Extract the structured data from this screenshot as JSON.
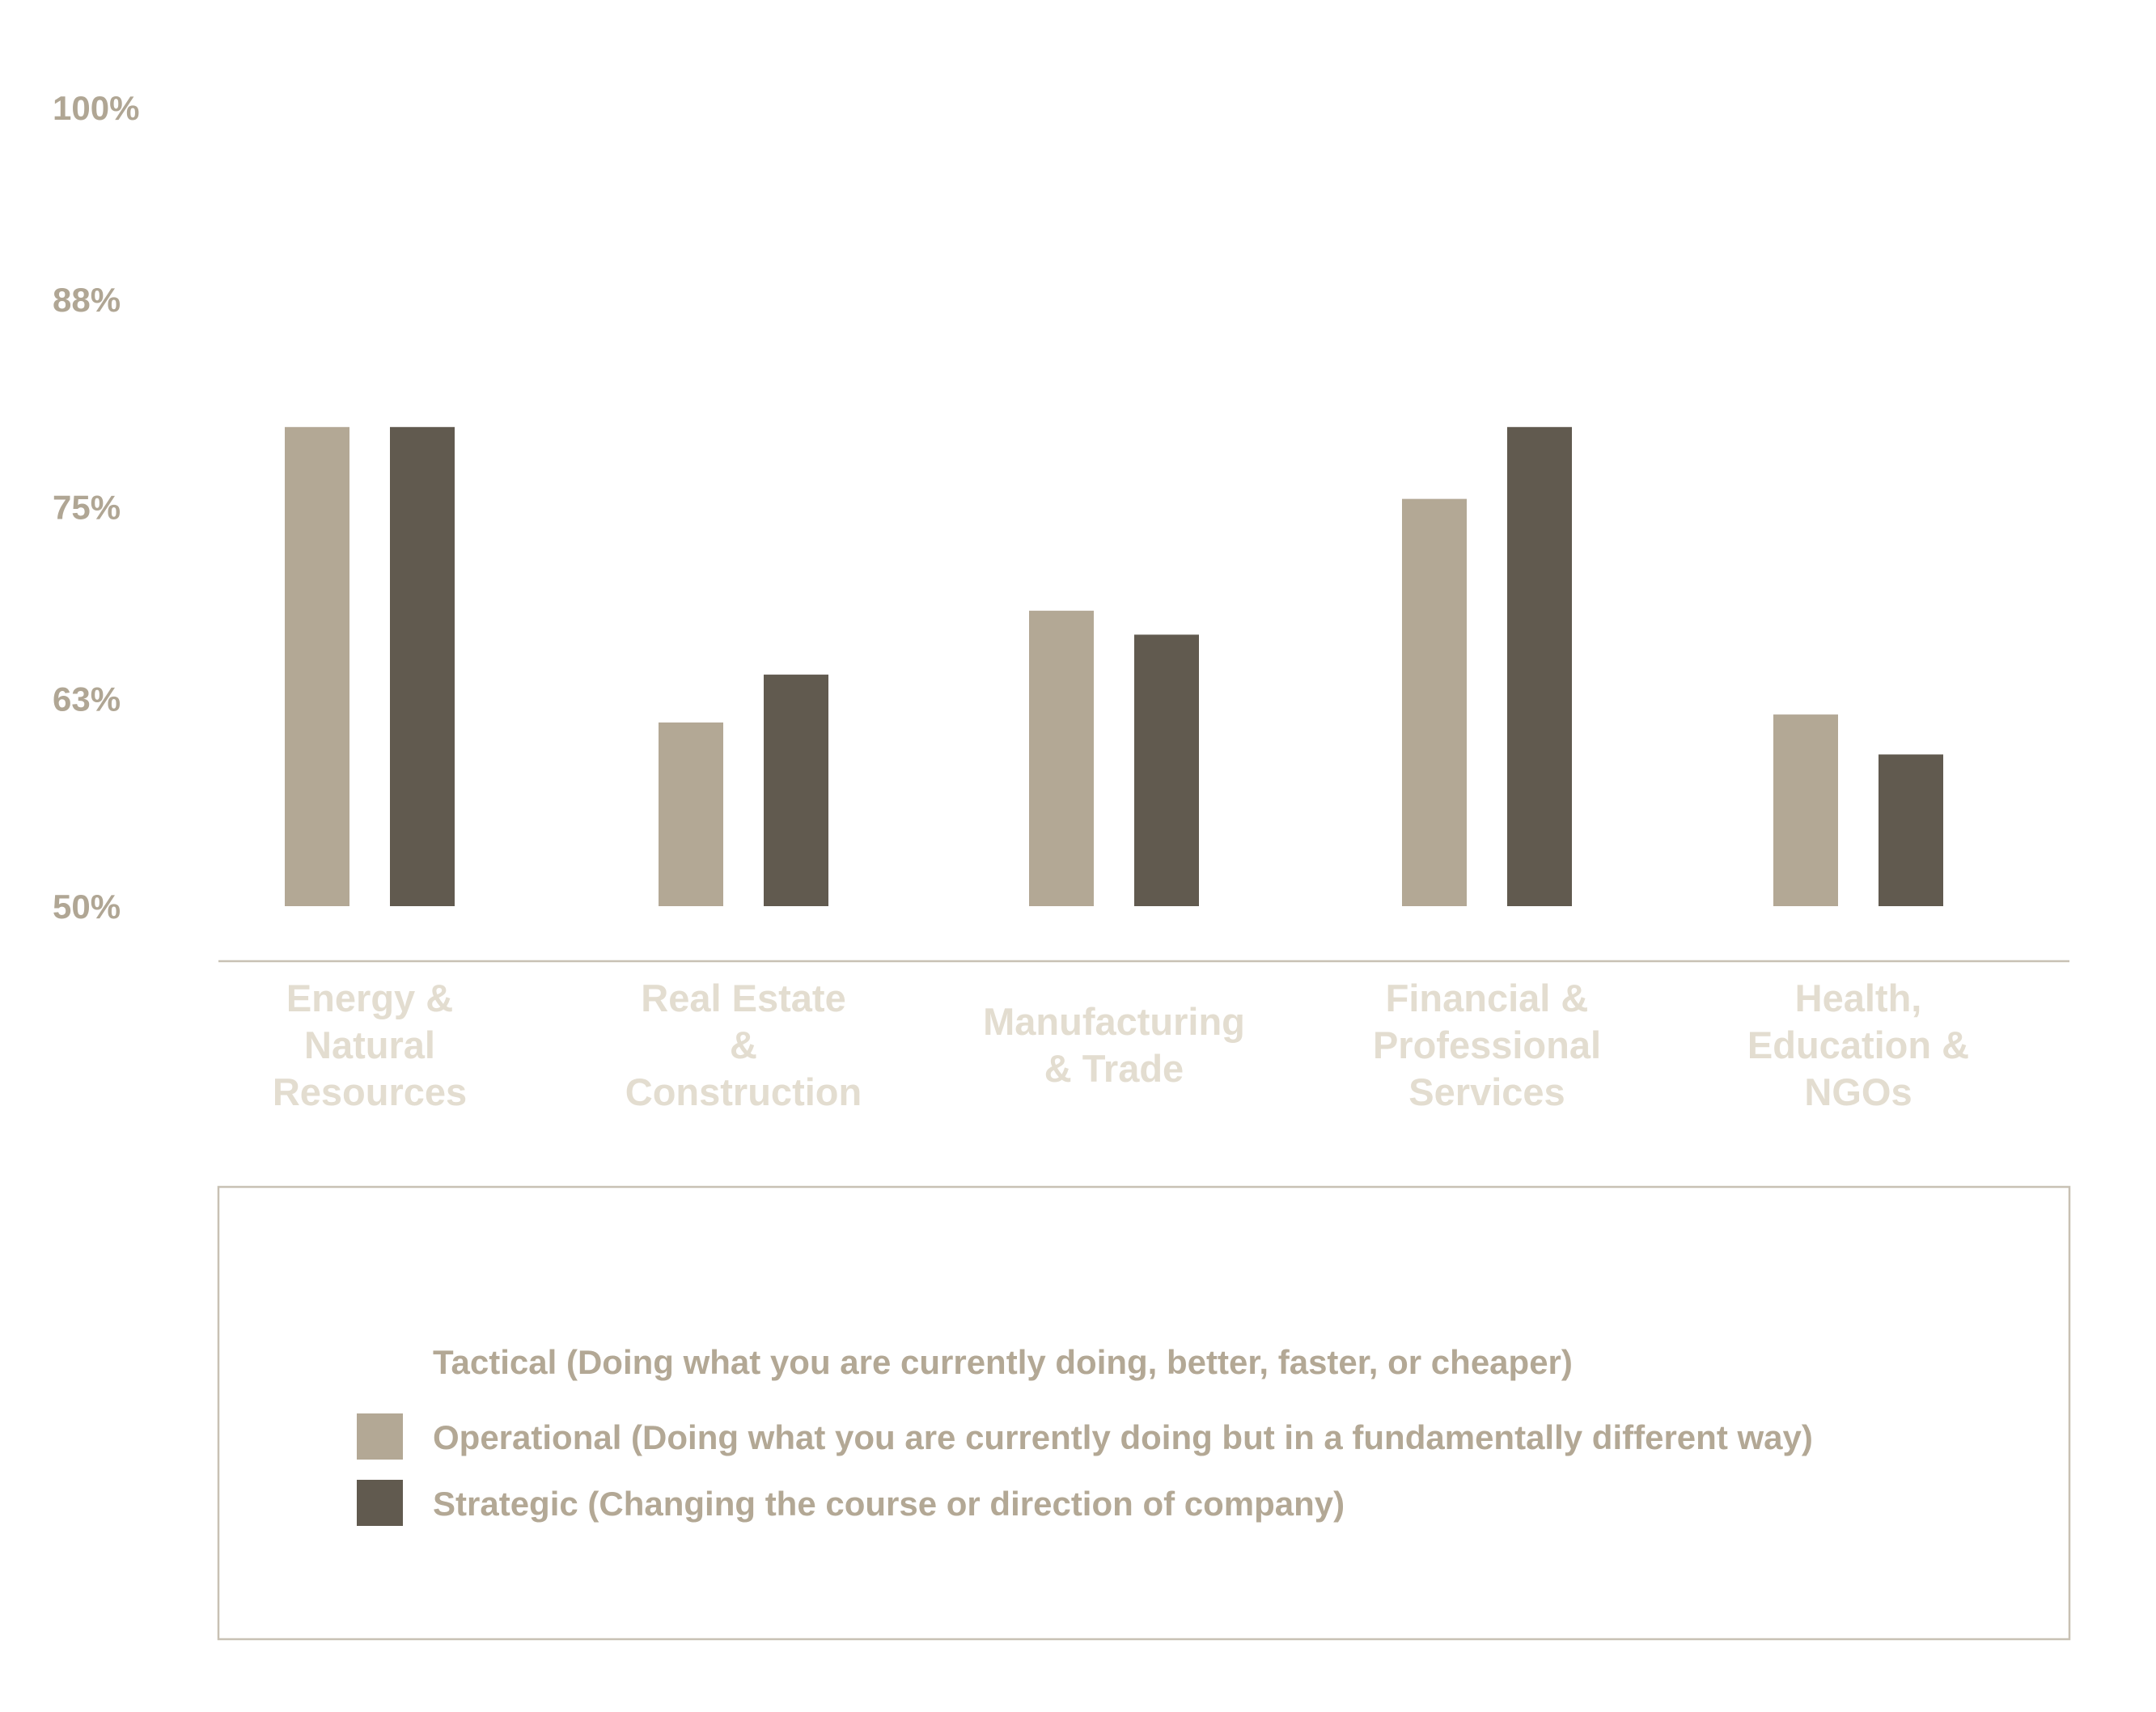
{
  "colors": {
    "axis_text": "#b0a694",
    "category_text": "#e3ddd0",
    "operational": "#b3a895",
    "strategic": "#615a4f",
    "axis_line": "#c8c1b4",
    "legend_border": "#c8c1b4",
    "legend_text": "#b3a895"
  },
  "chart_data": {
    "type": "bar",
    "ylim": [
      50,
      100
    ],
    "yticks": [
      50,
      63,
      75,
      88,
      100
    ],
    "ytick_labels": [
      "50%",
      "63%",
      "75%",
      "88%",
      "100%"
    ],
    "grid": false,
    "categories": [
      [
        "Energy &",
        "Natural",
        "Resources"
      ],
      [
        "Real Estate",
        "&",
        "Construction"
      ],
      [
        "Manufacturing",
        "& Trade"
      ],
      [
        "Financial &",
        "Professional",
        "Services"
      ],
      [
        "Health,",
        "Education &",
        "NGOs"
      ]
    ],
    "series": [
      {
        "name": "Operational (Doing what you are currently doing but in a fundamentally different way)",
        "values": [
          80,
          61.5,
          68.5,
          75.5,
          62
        ]
      },
      {
        "name": "Strategic (Changing the course or direction of company)",
        "values": [
          80,
          64.5,
          67,
          80,
          59.5
        ]
      }
    ],
    "legend": {
      "position": "bottom",
      "items": [
        {
          "label": "Tactical (Doing what you are currently doing, better, faster, or cheaper)",
          "swatch": false
        },
        {
          "label": "Operational (Doing what you are currently doing but in a fundamentally different way)",
          "swatch": true
        },
        {
          "label": "Strategic (Changing the course or direction of company)",
          "swatch": true
        }
      ]
    }
  }
}
